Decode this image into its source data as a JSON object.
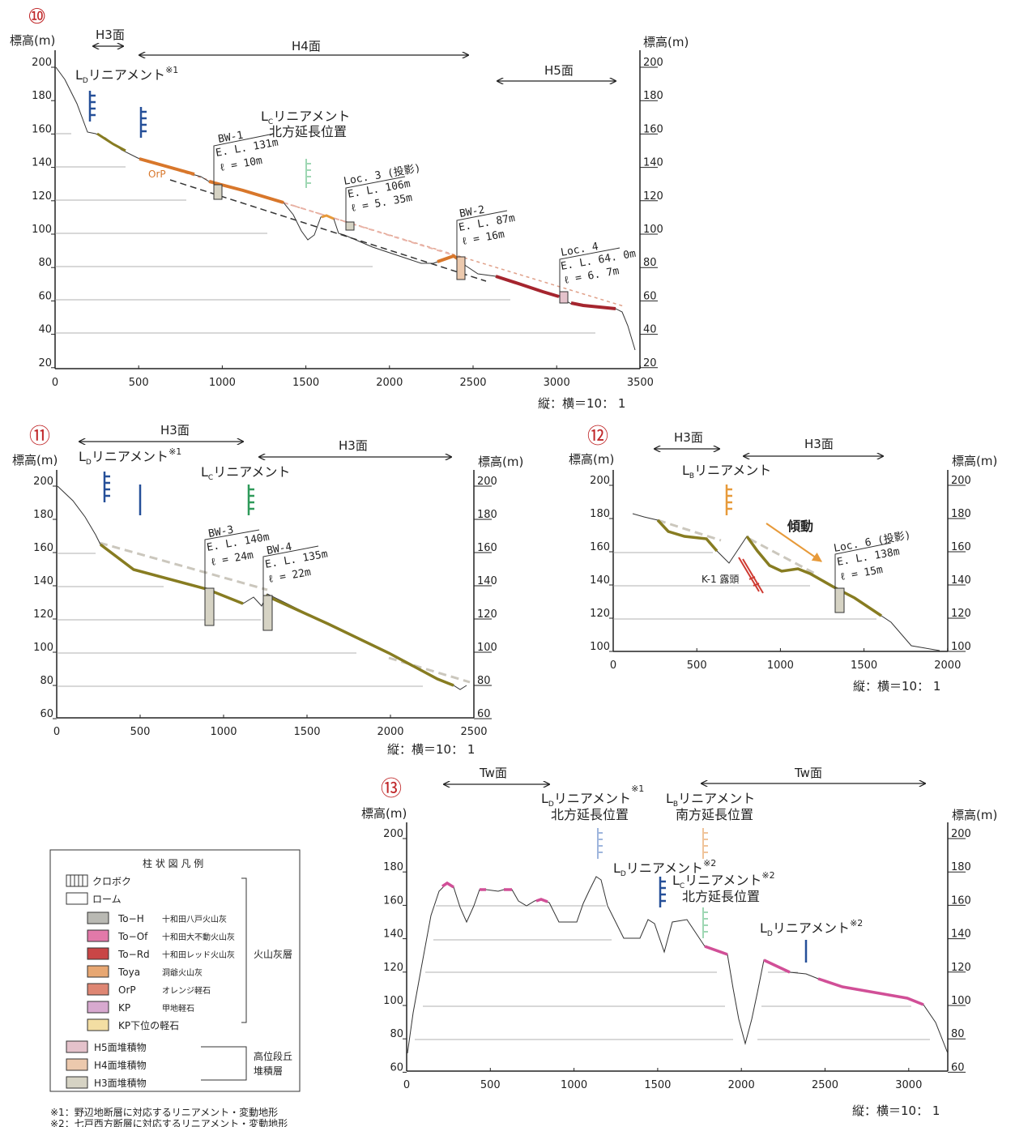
{
  "colors": {
    "ToH": "#b9b9b3",
    "ToOf": "#e279a9",
    "ToRd": "#c94646",
    "Toya": "#e7a772",
    "OrP": "#de8673",
    "KP": "#d7a9cf",
    "KPunder": "#f3dea3",
    "H5": "#e4c2cb",
    "H4": "#ecc9ad",
    "H3": "#d6d3c4",
    "olive": "#877c21",
    "orange": "#d8772b",
    "red": "#a5252e",
    "magenta": "#d14f97",
    "blue": "#254f98",
    "green": "#2f9a5a",
    "lightgreen": "#9fd7b4",
    "lightblue": "#9fb6dd",
    "lightorange": "#f0c49b",
    "tanorange": "#e79a3a"
  },
  "legend": {
    "title": "柱 状 図 凡 例",
    "kuroboku": "クロボク",
    "loam": "ローム",
    "items": [
      {
        "code": "To−H",
        "name": "十和田八戸火山灰"
      },
      {
        "code": "To−Of",
        "name": "十和田大不動火山灰"
      },
      {
        "code": "To−Rd",
        "name": "十和田レッド火山灰"
      },
      {
        "code": "Toya",
        "name": "洞爺火山灰"
      },
      {
        "code": "OrP",
        "name": "オレンジ軽石"
      },
      {
        "code": "KP",
        "name": "甲地軽石"
      },
      {
        "code": "KP下位の軽石",
        "name": ""
      }
    ],
    "volcanic_group": "火山灰層",
    "terrace_items": [
      "H5面堆積物",
      "H4面堆積物",
      "H3面堆積物"
    ],
    "terrace_group_1": "高位段丘",
    "terrace_group_2": "堆積層"
  },
  "notes": [
    "※1：野辺地断層に対応するリニアメント・変動地形",
    "※2：七戸西方断層に対応するリニアメント・変動地形"
  ],
  "p10": {
    "number": "⑩",
    "yaxis_l": "標高(m)",
    "yaxis_r": "標高(m)",
    "yticks": [
      "200",
      "180",
      "160",
      "140",
      "120",
      "100",
      "80",
      "60",
      "40",
      "20"
    ],
    "xticks": [
      "0",
      "500",
      "1000",
      "1500",
      "2000",
      "2500",
      "3000",
      "3500"
    ],
    "ratio": "縦：横＝10： 1",
    "surf_h3": "H3面",
    "surf_h4": "H4面",
    "surf_h5": "H5面",
    "ld": "L",
    "ld_sub": "D",
    "ld_rest": "リニアメント",
    "ld_note": "※1",
    "lc": "L",
    "lc_sub": "C",
    "lc_rest": "リニアメント",
    "lc_line2": "北方延長位置",
    "orp": "OrP",
    "bw1": [
      "BW-1",
      "E. L. 131m",
      "ℓ = 10m"
    ],
    "loc3": [
      "Loc. 3 (投影)",
      "E. L. 106m",
      "ℓ = 5. 35m"
    ],
    "bw2": [
      "BW-2",
      "E. L. 87m",
      "ℓ = 16m"
    ],
    "loc4": [
      "Loc. 4",
      "E. L. 64. 0m",
      "ℓ = 6. 7m"
    ]
  },
  "p11": {
    "number": "⑪",
    "yaxis_l": "標高(m)",
    "yaxis_r": "標高(m)",
    "yticks": [
      "200",
      "180",
      "160",
      "140",
      "120",
      "100",
      "80",
      "60"
    ],
    "xticks": [
      "0",
      "500",
      "1000",
      "1500",
      "2000",
      "2500"
    ],
    "ratio": "縦：横＝10： 1",
    "surf_a": "H3面",
    "surf_b": "H3面",
    "ld": "L",
    "ld_sub": "D",
    "ld_rest": "リニアメント",
    "ld_note": "※1",
    "lc": "L",
    "lc_sub": "C",
    "lc_rest": "リニアメント",
    "bw3": [
      "BW-3",
      "E. L. 140m",
      "ℓ = 24m"
    ],
    "bw4": [
      "BW-4",
      "E. L. 135m",
      "ℓ = 22m"
    ]
  },
  "p12": {
    "number": "⑫",
    "yaxis_l": "標高(m)",
    "yaxis_r": "標高(m)",
    "yticks": [
      "200",
      "180",
      "160",
      "140",
      "120",
      "100"
    ],
    "xticks": [
      "0",
      "500",
      "1000",
      "1500",
      "2000"
    ],
    "ratio": "縦：横＝10： 1",
    "surf_a": "H3面",
    "surf_b": "H3面",
    "lb": "L",
    "lb_sub": "B",
    "lb_rest": "リニアメント",
    "tilt": "傾動",
    "k1": "K-1 露頭",
    "loc6": [
      "Loc. 6 (投影)",
      "E. L. 138m",
      "ℓ = 15m"
    ]
  },
  "p13": {
    "number": "⑬",
    "yaxis_l": "標高(m)",
    "yaxis_r": "標高(m)",
    "yticks": [
      "200",
      "180",
      "160",
      "140",
      "120",
      "100",
      "80",
      "60"
    ],
    "xticks": [
      "0",
      "500",
      "1000",
      "1500",
      "2000",
      "2500",
      "3000"
    ],
    "ratio": "縦：横＝10： 1",
    "surf_a": "Tw面",
    "surf_b": "Tw面",
    "ld1": "L",
    "ld1_sub": "D",
    "ld1_rest": "リニアメント",
    "ld1_note": "※1",
    "ld1_line2": "北方延長位置",
    "lb": "L",
    "lb_sub": "B",
    "lb_rest": "リニアメント",
    "lb_line2": "南方延長位置",
    "ld2": "L",
    "ld2_sub": "D",
    "ld2_rest": "リニアメント",
    "ld2_note": "※2",
    "lc": "L",
    "lc_sub": "C",
    "lc_rest": "リニアメント",
    "lc_note": "※2",
    "lc_line2": "北方延長位置",
    "ld3": "L",
    "ld3_sub": "D",
    "ld3_rest": "リニアメント",
    "ld3_note": "※2"
  }
}
